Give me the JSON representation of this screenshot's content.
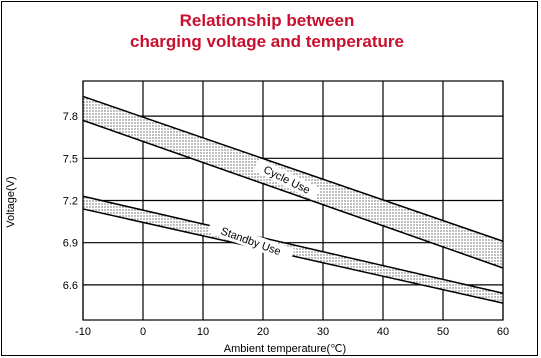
{
  "chart_data": {
    "type": "area",
    "title_line1": "Relationship between",
    "title_line2": "charging voltage and temperature",
    "title_color": "#c8102e",
    "xlabel": "Ambient temperature(℃)",
    "ylabel": "Voltage(V)",
    "xlim": [
      -10,
      60
    ],
    "ylim": [
      6.35,
      8.05
    ],
    "x_ticks": [
      -10,
      0,
      10,
      20,
      30,
      40,
      50,
      60
    ],
    "y_ticks": [
      6.6,
      6.9,
      7.2,
      7.5,
      7.8
    ],
    "x_tick_labels": [
      "-10",
      "0",
      "10",
      "20",
      "30",
      "40",
      "50",
      "60"
    ],
    "y_tick_labels": [
      "6.6",
      "6.9",
      "7.2",
      "7.5",
      "7.8"
    ],
    "grid": true,
    "series": [
      {
        "name": "Cycle Use",
        "x": [
          -10,
          60
        ],
        "upper": [
          7.94,
          6.91
        ],
        "lower": [
          7.77,
          6.72
        ]
      },
      {
        "name": "Standby Use",
        "x": [
          -10,
          60
        ],
        "upper": [
          7.23,
          6.54
        ],
        "lower": [
          7.14,
          6.47
        ]
      }
    ]
  }
}
